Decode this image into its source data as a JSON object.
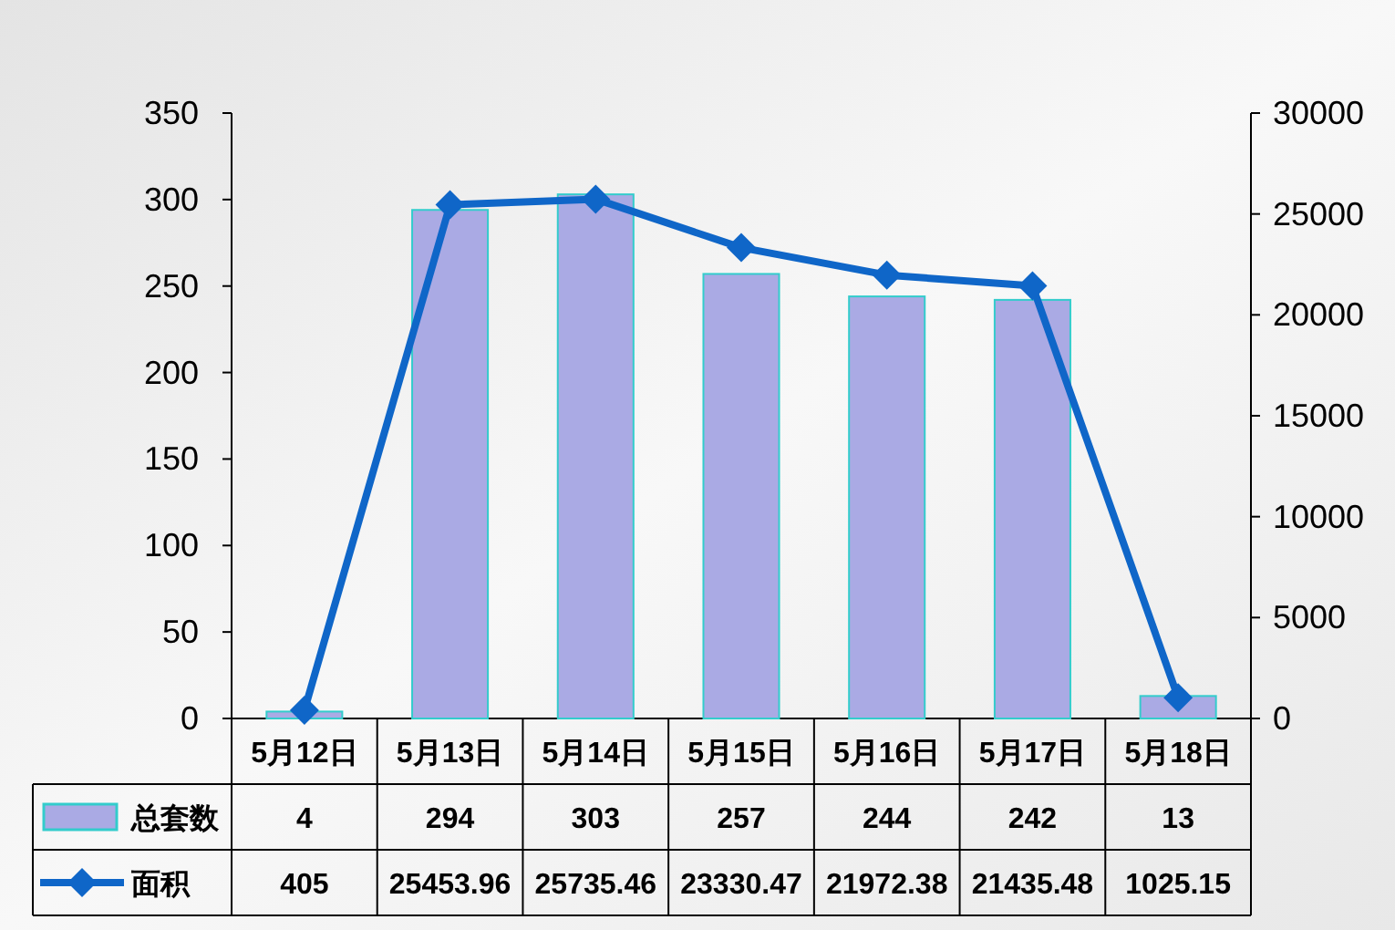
{
  "chart_data": {
    "type": "bar",
    "categories": [
      "5月12日",
      "5月13日",
      "5月14日",
      "5月15日",
      "5月16日",
      "5月17日",
      "5月18日"
    ],
    "series": [
      {
        "name": "总套数",
        "color": "#aaaae4",
        "values": [
          4,
          294,
          303,
          257,
          244,
          242,
          13
        ]
      },
      {
        "name": "面积",
        "type": "line",
        "axis": "y2",
        "color": "#0f66c8",
        "values": [
          405,
          25453.96,
          25735.46,
          23330.47,
          21972.38,
          21435.48,
          1025.15
        ]
      }
    ],
    "ylim": [
      0,
      350
    ],
    "yticks": [
      0,
      50,
      100,
      150,
      200,
      250,
      300,
      350
    ],
    "y2lim": [
      0,
      30000
    ],
    "y2ticks": [
      0,
      5000,
      10000,
      15000,
      20000,
      25000,
      30000
    ],
    "marker": "diamond",
    "data_labels": true,
    "grid": false,
    "legend": "bottom"
  }
}
